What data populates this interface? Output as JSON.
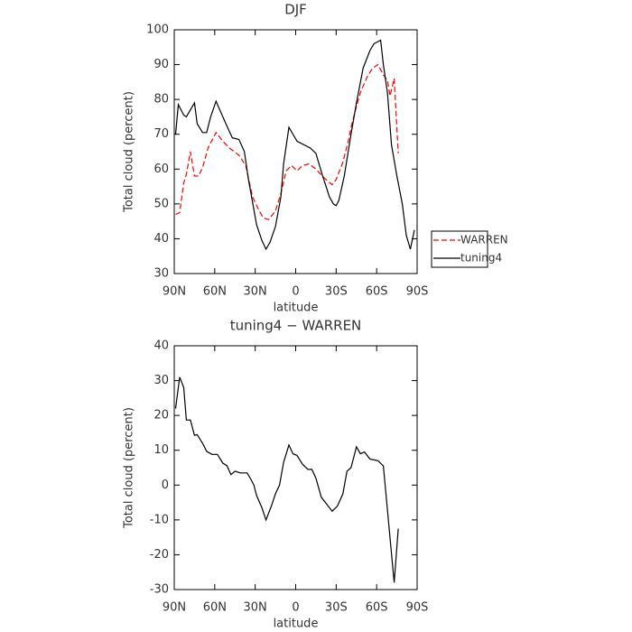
{
  "chart_data": [
    {
      "type": "line",
      "title": "DJF",
      "x_label": "latitude",
      "y_label": "Total cloud (percent)",
      "xlim": [
        90,
        -90
      ],
      "ylim": [
        30,
        100
      ],
      "xticks": [
        {
          "value": 90,
          "label": "90N"
        },
        {
          "value": 60,
          "label": "60N"
        },
        {
          "value": 30,
          "label": "30N"
        },
        0,
        {
          "value": -30,
          "label": "30S"
        },
        {
          "value": -60,
          "label": "60S"
        },
        {
          "value": -90,
          "label": "90S"
        }
      ],
      "yticks": [
        30,
        40,
        50,
        60,
        70,
        80,
        90,
        100
      ],
      "legend": "right",
      "series": [
        {
          "name": "WARREN",
          "color": "#ff0000",
          "linestyle": "dashed",
          "x": [
            89,
            86,
            83,
            81,
            78,
            75,
            72,
            69,
            65,
            59,
            54,
            49,
            42,
            37,
            32,
            27,
            24,
            20,
            15,
            11,
            7,
            3,
            -1,
            -5,
            -10,
            -15,
            -21,
            -27,
            -30,
            -35,
            -39,
            -41,
            -45,
            -48,
            -53,
            -57,
            -61,
            -65,
            -68,
            -70,
            -73,
            -76
          ],
          "values": [
            47,
            47.5,
            56,
            58.5,
            65,
            58,
            58,
            60.5,
            66,
            70.5,
            68,
            66,
            64,
            61,
            52,
            48,
            46,
            45.5,
            48,
            53,
            59.5,
            61,
            59.5,
            61,
            61.5,
            60,
            57.5,
            55.5,
            57,
            62,
            68,
            72,
            78,
            82,
            86.5,
            89,
            90,
            87,
            85.5,
            81,
            86,
            64.5
          ]
        },
        {
          "name": "tuning4",
          "color": "#000000",
          "linestyle": "solid",
          "x": [
            89,
            87,
            83,
            81,
            75,
            73,
            69,
            66,
            63,
            59,
            54,
            50,
            47,
            42,
            38,
            35,
            32,
            29,
            25,
            22,
            19,
            15,
            11,
            9,
            5,
            -1,
            -11,
            -15,
            -20,
            -25,
            -28,
            -30,
            -32,
            -36,
            -41,
            -45,
            -50,
            -55,
            -58,
            -63,
            -65,
            -68,
            -71,
            -75,
            -79,
            -82,
            -85,
            -88
          ],
          "values": [
            70,
            78.5,
            75.5,
            75,
            79,
            73,
            70.5,
            70.5,
            75,
            79.5,
            75,
            71.5,
            69,
            68.5,
            65,
            57,
            50.5,
            44,
            39.5,
            37,
            39,
            43.5,
            52,
            61.5,
            72,
            68,
            66,
            64.5,
            58,
            52,
            50,
            49.5,
            51,
            58,
            70,
            79,
            89,
            94,
            96,
            97,
            90,
            82,
            67,
            58,
            50,
            41,
            37,
            42.5
          ]
        }
      ]
    },
    {
      "type": "line",
      "title": "tuning4 − WARREN",
      "x_label": "latitude",
      "y_label": "Total cloud (percent)",
      "xlim": [
        90,
        -90
      ],
      "ylim": [
        -30,
        40
      ],
      "xticks": [
        {
          "value": 90,
          "label": "90N"
        },
        {
          "value": 60,
          "label": "60N"
        },
        {
          "value": 30,
          "label": "30N"
        },
        0,
        {
          "value": -30,
          "label": "30S"
        },
        {
          "value": -60,
          "label": "60S"
        },
        {
          "value": -90,
          "label": "90S"
        }
      ],
      "yticks": [
        -30,
        -20,
        -10,
        0,
        10,
        20,
        30,
        40
      ],
      "color": "#000000",
      "x": [
        89,
        86,
        83,
        81,
        78,
        75,
        73,
        69,
        66,
        62,
        58,
        54,
        51,
        48,
        45,
        41,
        36,
        33,
        31,
        29,
        25,
        22,
        18,
        15,
        12,
        9,
        5,
        2,
        -1,
        -5,
        -9,
        -12,
        -15,
        -19,
        -23,
        -27,
        -31,
        -35,
        -38,
        -41,
        -45,
        -48,
        -51,
        -55,
        -61,
        -65,
        -68,
        -70,
        -73,
        -76
      ],
      "values": [
        22,
        31,
        28,
        18.7,
        18.7,
        14.3,
        14.5,
        12,
        9.7,
        8.8,
        8.8,
        6.3,
        5.6,
        3,
        4,
        3.5,
        3.5,
        1.5,
        0,
        -3,
        -6.5,
        -10,
        -6,
        -2.5,
        0,
        6.5,
        11.5,
        9,
        8.5,
        6,
        4.5,
        4.5,
        2,
        -3.5,
        -5.5,
        -7.5,
        -6,
        -2.5,
        4,
        5,
        11,
        9,
        9.5,
        7.5,
        7,
        5.5,
        -7,
        -15.5,
        -28,
        -12.5
      ]
    }
  ]
}
